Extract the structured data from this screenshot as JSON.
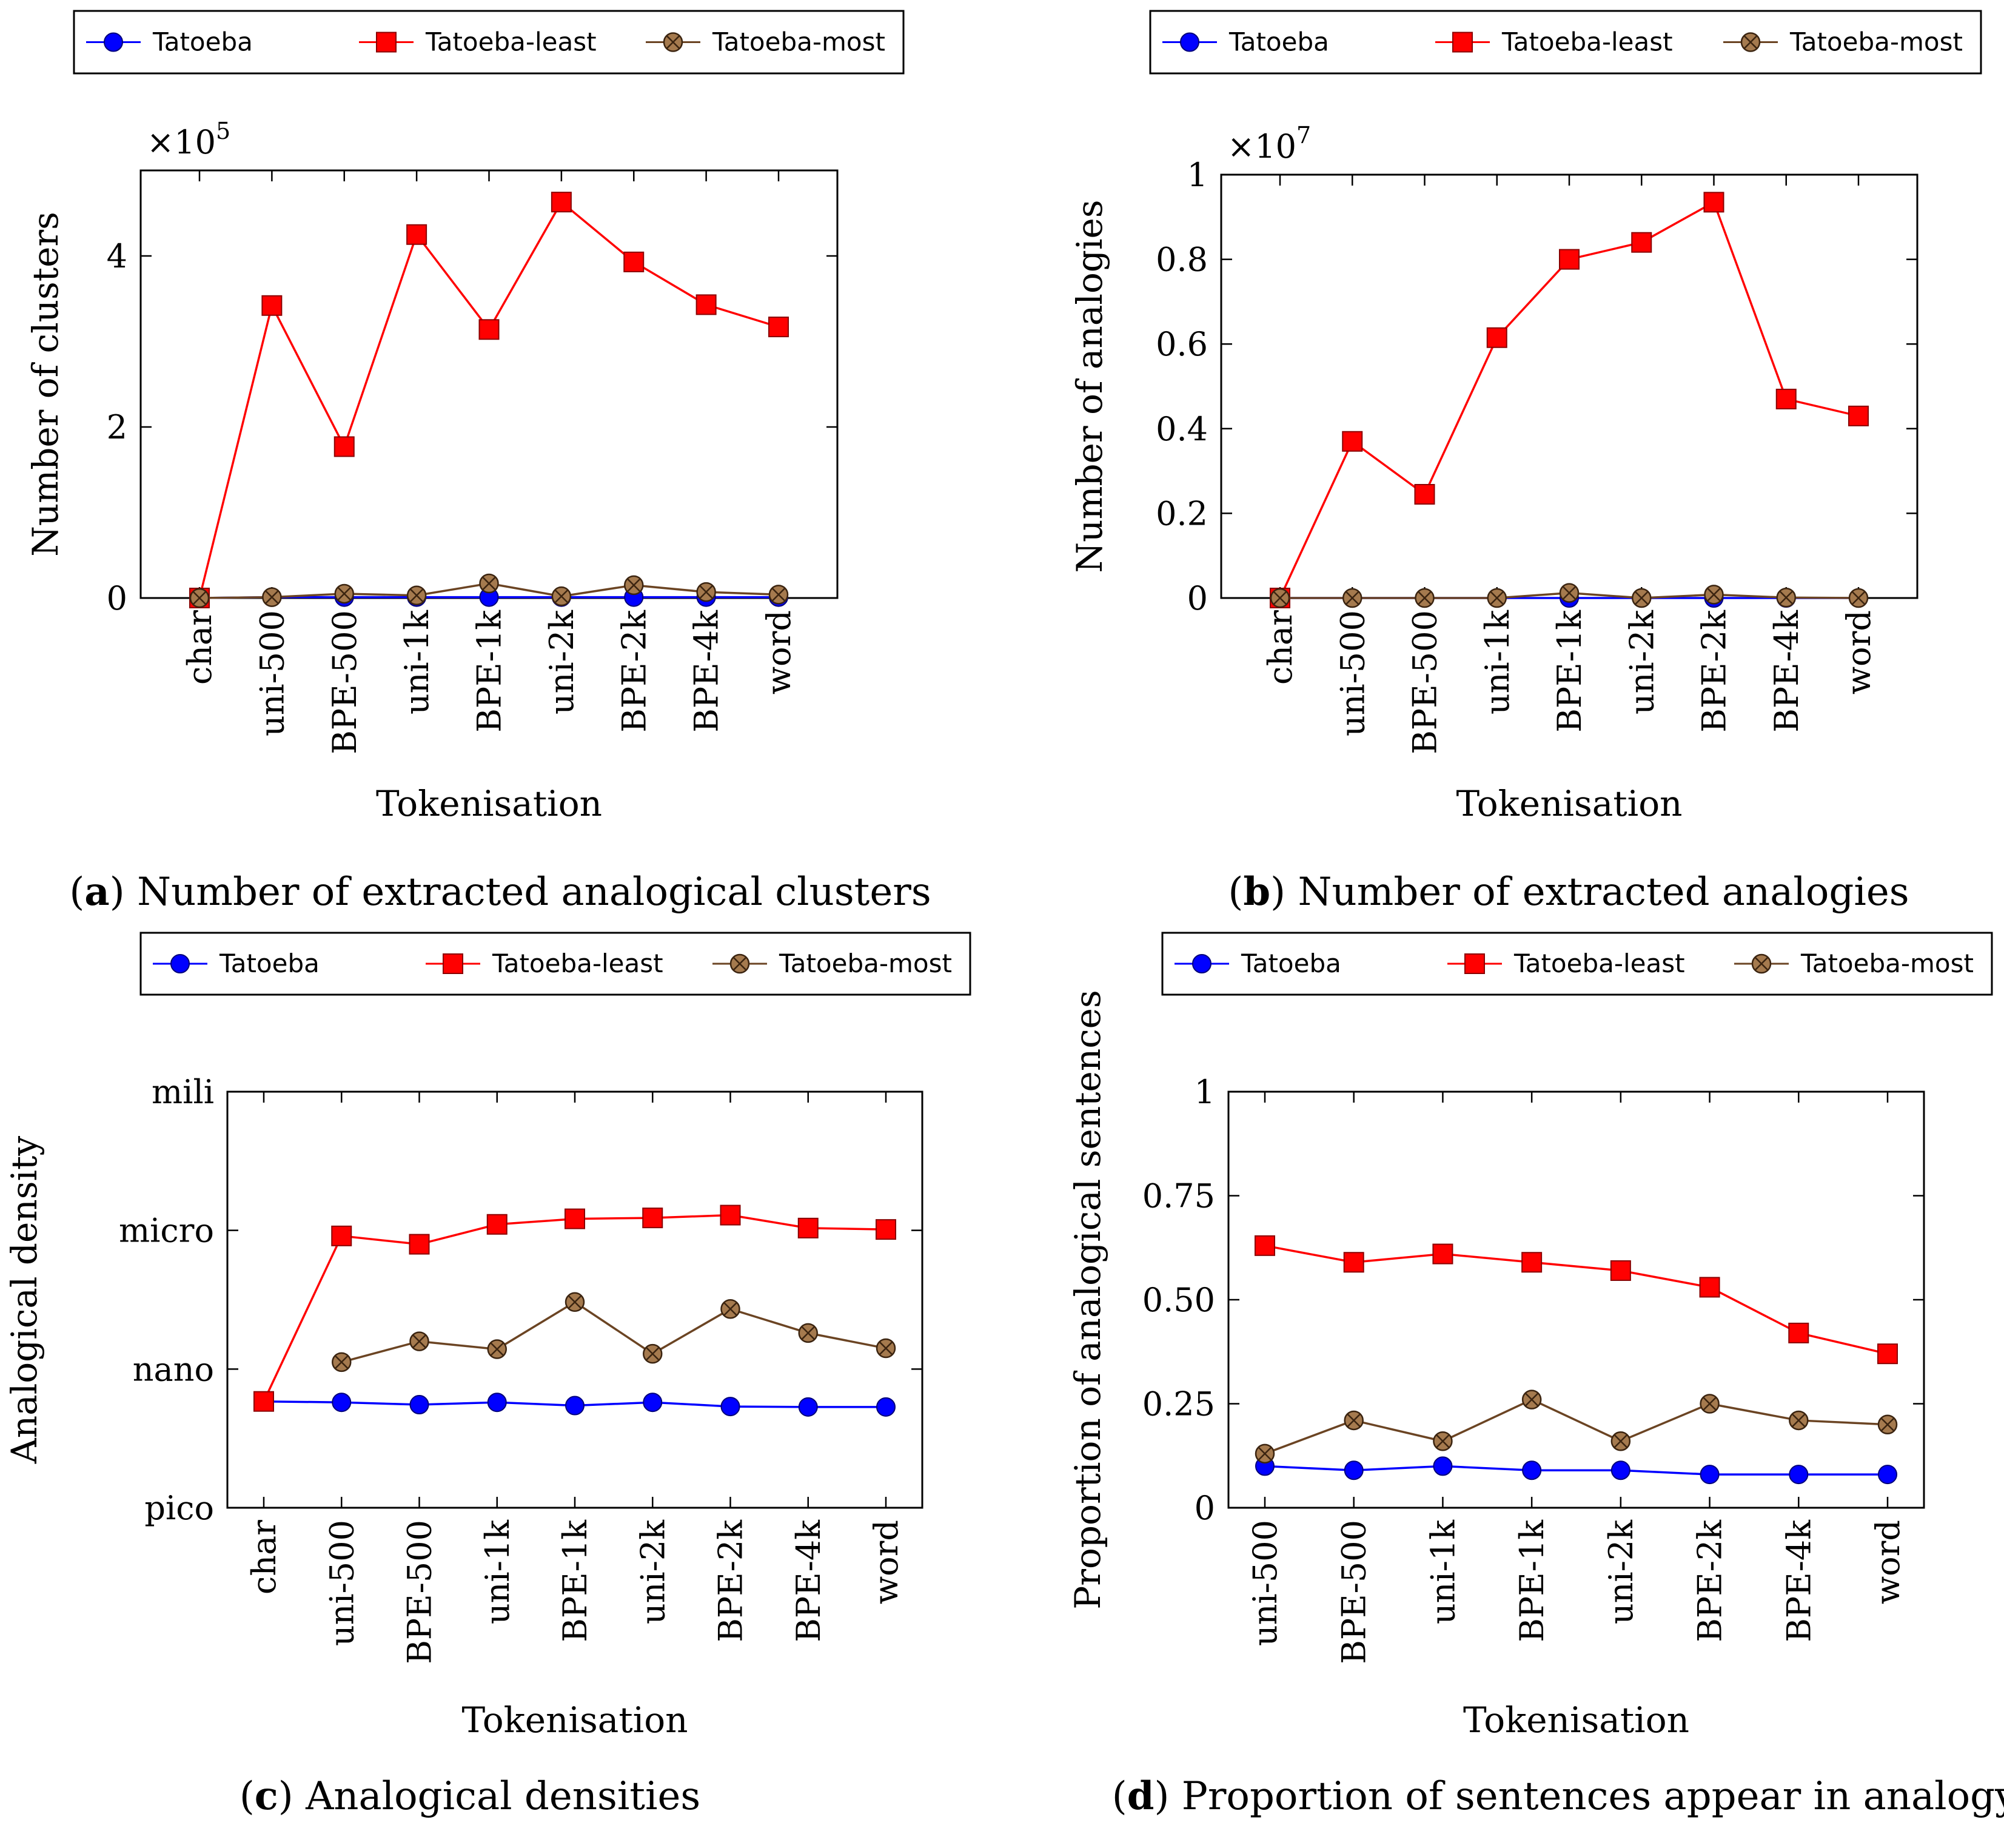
{
  "series_style": {
    "Tatoeba": {
      "color": "#0000ff",
      "marker": "circle"
    },
    "Tatoeba-least": {
      "color": "#ff0000",
      "marker": "square"
    },
    "Tatoeba-most": {
      "color": "#6b4423",
      "marker": "otimes"
    }
  },
  "chart_data": [
    {
      "id": "a",
      "type": "line",
      "title": "Number of extracted analogical clusters",
      "caption_label": "a",
      "categories": [
        "char",
        "uni-500",
        "BPE-500",
        "uni-1k",
        "BPE-1k",
        "uni-2k",
        "BPE-2k",
        "BPE-4k",
        "word"
      ],
      "xlabel": "Tokenisation",
      "ylabel": "Number of clusters",
      "scale_note": "×10^5",
      "scale_base": "×10",
      "scale_exp": "5",
      "ylim": [
        0,
        5.0
      ],
      "yticks": [
        0,
        2,
        4
      ],
      "ytick_labels": [
        "0",
        "2",
        "4"
      ],
      "legend": [
        "Tatoeba",
        "Tatoeba-least",
        "Tatoeba-most"
      ],
      "series": [
        {
          "name": "Tatoeba",
          "values": [
            0.0,
            0.01,
            0.01,
            0.01,
            0.01,
            0.01,
            0.01,
            0.01,
            0.01
          ]
        },
        {
          "name": "Tatoeba-least",
          "values": [
            0.0,
            3.42,
            1.77,
            4.25,
            3.14,
            4.63,
            3.93,
            3.43,
            3.17
          ]
        },
        {
          "name": "Tatoeba-most",
          "values": [
            0.0,
            0.01,
            0.05,
            0.03,
            0.17,
            0.02,
            0.15,
            0.07,
            0.04
          ]
        }
      ]
    },
    {
      "id": "b",
      "type": "line",
      "title": "Number of extracted analogies",
      "caption_label": "b",
      "categories": [
        "char",
        "uni-500",
        "BPE-500",
        "uni-1k",
        "BPE-1k",
        "uni-2k",
        "BPE-2k",
        "BPE-4k",
        "word"
      ],
      "xlabel": "Tokenisation",
      "ylabel": "Number of analogies",
      "scale_note": "×10^7",
      "scale_base": "×10",
      "scale_exp": "7",
      "ylim": [
        0,
        1.0
      ],
      "yticks": [
        0,
        0.2,
        0.4,
        0.6,
        0.8,
        1
      ],
      "ytick_labels": [
        "0",
        "0.2",
        "0.4",
        "0.6",
        "0.8",
        "1"
      ],
      "legend": [
        "Tatoeba",
        "Tatoeba-least",
        "Tatoeba-most"
      ],
      "series": [
        {
          "name": "Tatoeba",
          "values": [
            0.0,
            0.0,
            0.0,
            0.0,
            0.0,
            0.0,
            0.0,
            0.0,
            0.0
          ]
        },
        {
          "name": "Tatoeba-least",
          "values": [
            0.0,
            0.37,
            0.245,
            0.615,
            0.8,
            0.84,
            0.935,
            0.47,
            0.43
          ]
        },
        {
          "name": "Tatoeba-most",
          "values": [
            0.0,
            0.0,
            0.0,
            0.0,
            0.012,
            0.0,
            0.008,
            0.001,
            0.0
          ]
        }
      ]
    },
    {
      "id": "c",
      "type": "line",
      "title": "Analogical densities",
      "caption_label": "c",
      "categories": [
        "char",
        "uni-500",
        "BPE-500",
        "uni-1k",
        "BPE-1k",
        "uni-2k",
        "BPE-2k",
        "BPE-4k",
        "word"
      ],
      "xlabel": "Tokenisation",
      "ylabel": "Analogical density",
      "scale": "log10",
      "ylim": [
        -12,
        -3
      ],
      "yticks": [
        -12,
        -9,
        -6,
        -3
      ],
      "ytick_labels": [
        "pico",
        "nano",
        "micro",
        "mili"
      ],
      "legend": [
        "Tatoeba",
        "Tatoeba-least",
        "Tatoeba-most"
      ],
      "series": [
        {
          "name": "Tatoeba",
          "values": [
            -9.7,
            -9.72,
            -9.77,
            -9.72,
            -9.79,
            -9.72,
            -9.81,
            -9.82,
            -9.82
          ]
        },
        {
          "name": "Tatoeba-least",
          "values": [
            -9.7,
            -6.12,
            -6.3,
            -5.87,
            -5.75,
            -5.73,
            -5.67,
            -5.95,
            -5.98
          ]
        },
        {
          "name": "Tatoeba-most",
          "values": [
            null,
            -8.85,
            -8.4,
            -8.57,
            -7.55,
            -8.67,
            -7.7,
            -8.22,
            -8.55
          ]
        }
      ]
    },
    {
      "id": "d",
      "type": "line",
      "title": "Proportion of sentences appear in analogy",
      "caption_label": "d",
      "categories": [
        "uni-500",
        "BPE-500",
        "uni-1k",
        "BPE-1k",
        "uni-2k",
        "BPE-2k",
        "BPE-4k",
        "word"
      ],
      "xlabel": "Tokenisation",
      "ylabel": "Proportion of analogical sentences",
      "ylim": [
        0,
        1
      ],
      "yticks": [
        0,
        0.25,
        0.5,
        0.75,
        1
      ],
      "ytick_labels": [
        "0",
        "0.25",
        "0.50",
        "0.75",
        "1"
      ],
      "legend": [
        "Tatoeba",
        "Tatoeba-least",
        "Tatoeba-most"
      ],
      "series": [
        {
          "name": "Tatoeba",
          "values": [
            0.1,
            0.09,
            0.1,
            0.09,
            0.09,
            0.08,
            0.08,
            0.08
          ]
        },
        {
          "name": "Tatoeba-least",
          "values": [
            0.63,
            0.59,
            0.61,
            0.59,
            0.57,
            0.53,
            0.42,
            0.37
          ]
        },
        {
          "name": "Tatoeba-most",
          "values": [
            0.13,
            0.21,
            0.16,
            0.26,
            0.16,
            0.25,
            0.21,
            0.2
          ]
        }
      ]
    }
  ]
}
